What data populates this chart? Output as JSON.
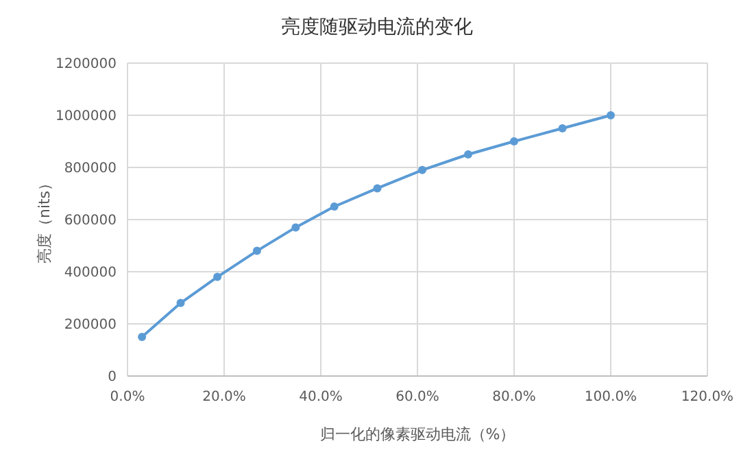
{
  "chart_data": {
    "type": "line",
    "title": "亮度随驱动电流的变化",
    "xlabel": "归一化的像素驱动电流（%）",
    "ylabel": "亮度（nits）",
    "x": [
      0.03,
      0.11,
      0.186,
      0.268,
      0.348,
      0.428,
      0.517,
      0.61,
      0.705,
      0.8,
      0.9,
      1.0
    ],
    "series": [
      {
        "color": "#5b9bd5",
        "values": [
          150000,
          280000,
          380000,
          480000,
          570000,
          650000,
          720000,
          790000,
          850000,
          900000,
          950000,
          1000000
        ]
      }
    ],
    "xlim": [
      0,
      1.2
    ],
    "xticks": [
      {
        "value": 0,
        "label": "0.0%"
      },
      {
        "value": 0.2,
        "label": "20.0%"
      },
      {
        "value": 0.4,
        "label": "40.0%"
      },
      {
        "value": 0.6,
        "label": "60.0%"
      },
      {
        "value": 0.8,
        "label": "80.0%"
      },
      {
        "value": 1.0,
        "label": "100.0%"
      },
      {
        "value": 1.2,
        "label": "120.0%"
      }
    ],
    "ylim": [
      0,
      1200000
    ],
    "yticks": [
      0,
      200000,
      400000,
      600000,
      800000,
      1000000,
      1200000
    ],
    "grid": true,
    "marker": "circle",
    "line_style": "solid"
  }
}
